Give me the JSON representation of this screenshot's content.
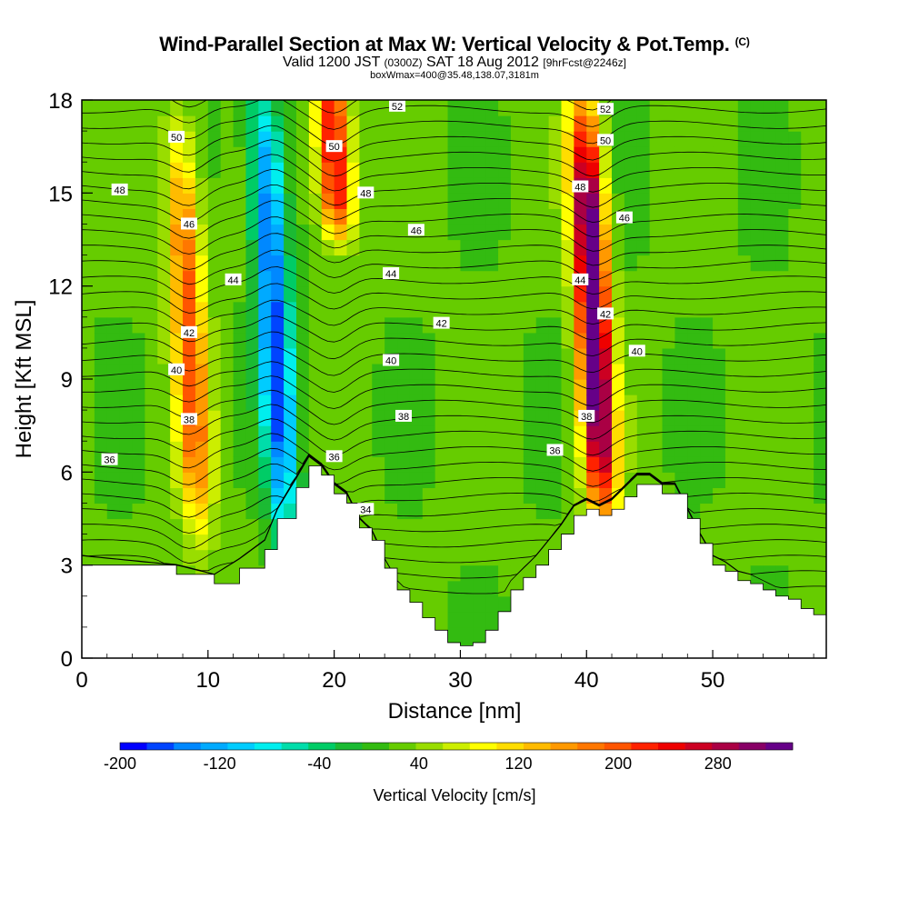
{
  "chart_data": {
    "type": "heatmap",
    "title": "Wind-Parallel Section at Max W: Vertical Velocity & Pot.Temp.",
    "title_suffix": "(C)",
    "subtitle": {
      "valid": "Valid 1200 JST",
      "utc": "(0300Z)",
      "date": "SAT 18 Aug 2012",
      "forecast": "[9hrFcst@2246z]"
    },
    "note": "boxWmax=400@35.48,138.07,3181m",
    "xlabel": "Distance [nm]",
    "ylabel": "Height [Kft MSL]",
    "xlim": [
      0,
      59
    ],
    "ylim": [
      0,
      18
    ],
    "x_ticks": [
      0,
      10,
      20,
      30,
      40,
      50
    ],
    "y_ticks": [
      0,
      3,
      6,
      9,
      12,
      15,
      18
    ],
    "colorbar": {
      "label": "Vertical Velocity [cm/s]",
      "min": -200,
      "max": 340,
      "tick_labels": [
        "-200",
        "-120",
        "-40",
        "40",
        "120",
        "200",
        "280"
      ],
      "tick_values": [
        -200,
        -120,
        -40,
        40,
        120,
        200,
        280
      ],
      "colors": [
        "#0000ff",
        "#0044ff",
        "#0088ff",
        "#00aaff",
        "#00ccff",
        "#00eeee",
        "#00ddaa",
        "#00cc66",
        "#1bba33",
        "#33bb11",
        "#66cc00",
        "#99dd00",
        "#ccee00",
        "#ffff00",
        "#ffdd00",
        "#ffbb00",
        "#ff9900",
        "#ff7700",
        "#ff5500",
        "#ff2200",
        "#ee0000",
        "#cc0022",
        "#aa0044",
        "#880066",
        "#660088"
      ]
    },
    "terrain_profile": {
      "x": [
        0,
        7.5,
        10.5,
        12.5,
        14.5,
        15.5,
        17,
        18,
        19,
        20,
        21,
        22,
        23,
        24,
        25,
        26,
        27,
        28,
        29,
        30,
        31,
        32,
        33,
        34,
        35,
        36,
        37,
        38,
        39,
        40,
        41,
        42,
        43,
        44,
        45,
        46,
        47,
        48,
        49,
        50,
        51,
        52,
        53,
        54,
        55,
        56,
        57,
        58,
        59
      ],
      "y": [
        3.0,
        2.7,
        2.4,
        2.9,
        3.5,
        4.5,
        5.5,
        6.2,
        5.9,
        5.3,
        5.0,
        4.2,
        3.8,
        2.9,
        2.2,
        1.8,
        1.3,
        0.9,
        0.5,
        0.4,
        0.5,
        0.9,
        1.5,
        2.2,
        2.6,
        3.0,
        3.5,
        4.0,
        4.6,
        4.8,
        4.6,
        4.8,
        5.2,
        5.6,
        5.6,
        5.3,
        5.3,
        4.5,
        3.7,
        3.0,
        2.8,
        2.5,
        2.4,
        2.2,
        2.0,
        1.9,
        1.6,
        1.4,
        1.3
      ]
    },
    "updraft_cores": [
      {
        "x": 8.5,
        "y_top": 16.0,
        "y_bottom": 5.0,
        "w_max": 180
      },
      {
        "x": 20.0,
        "y_top": 18.0,
        "y_bottom": 14.5,
        "w_max": 240
      },
      {
        "x": 40.5,
        "y_top": 17.0,
        "y_bottom": 5.5,
        "w_max": 340
      }
    ],
    "downdraft_cores": [
      {
        "x": 15.2,
        "y_top": 17.5,
        "y_bottom": 5.0,
        "w_min": -190
      }
    ],
    "isentrope_labels": [
      {
        "theta": "36",
        "x": 2.2,
        "y": 6.4
      },
      {
        "theta": "38",
        "x": 8.5,
        "y": 7.7
      },
      {
        "theta": "40",
        "x": 7.5,
        "y": 9.3
      },
      {
        "theta": "42",
        "x": 8.5,
        "y": 10.5
      },
      {
        "theta": "44",
        "x": 12.0,
        "y": 12.2
      },
      {
        "theta": "46",
        "x": 8.5,
        "y": 14.0
      },
      {
        "theta": "48",
        "x": 3.0,
        "y": 15.1
      },
      {
        "theta": "50",
        "x": 7.5,
        "y": 16.8
      },
      {
        "theta": "36",
        "x": 20.0,
        "y": 6.5
      },
      {
        "theta": "34",
        "x": 22.5,
        "y": 4.8
      },
      {
        "theta": "38",
        "x": 25.5,
        "y": 7.8
      },
      {
        "theta": "40",
        "x": 24.5,
        "y": 9.6
      },
      {
        "theta": "42",
        "x": 28.5,
        "y": 10.8
      },
      {
        "theta": "44",
        "x": 24.5,
        "y": 12.4
      },
      {
        "theta": "46",
        "x": 26.5,
        "y": 13.8
      },
      {
        "theta": "48",
        "x": 22.5,
        "y": 15.0
      },
      {
        "theta": "50",
        "x": 20.0,
        "y": 16.5
      },
      {
        "theta": "52",
        "x": 25.0,
        "y": 17.8
      },
      {
        "theta": "36",
        "x": 37.5,
        "y": 6.7
      },
      {
        "theta": "38",
        "x": 40.0,
        "y": 7.8
      },
      {
        "theta": "40",
        "x": 44.0,
        "y": 9.9
      },
      {
        "theta": "42",
        "x": 41.5,
        "y": 11.1
      },
      {
        "theta": "44",
        "x": 39.5,
        "y": 12.2
      },
      {
        "theta": "46",
        "x": 43.0,
        "y": 14.2
      },
      {
        "theta": "48",
        "x": 39.5,
        "y": 15.2
      },
      {
        "theta": "50",
        "x": 41.5,
        "y": 16.7
      },
      {
        "theta": "52",
        "x": 41.5,
        "y": 17.7
      }
    ],
    "grid": false
  }
}
